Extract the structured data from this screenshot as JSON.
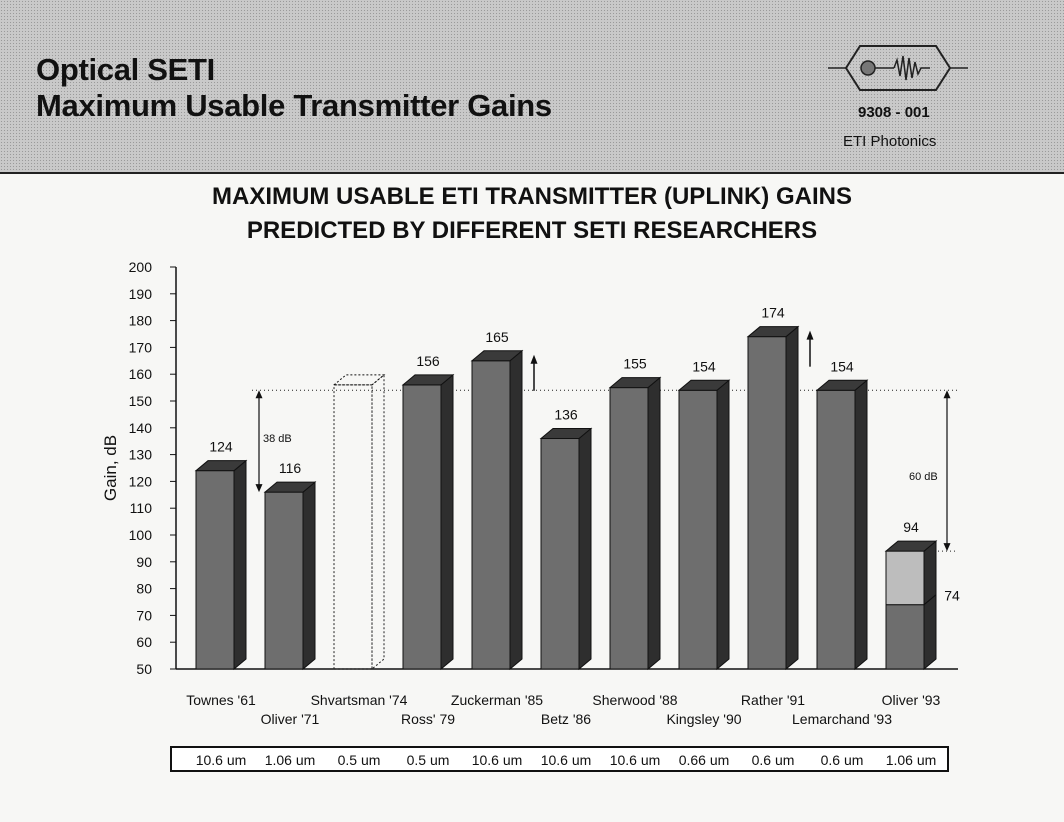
{
  "header": {
    "title_line1": "Optical SETI",
    "title_line2": "Maximum Usable Transmitter Gains",
    "doc_number": "9308 - 001",
    "org": "ETI Photonics",
    "logo_icon": "laser-signal-logo-icon"
  },
  "chart_data": {
    "type": "bar",
    "title_line1": "MAXIMUM USABLE ETI TRANSMITTER (UPLINK) GAINS",
    "title_line2": "PREDICTED BY DIFFERENT SETI RESEARCHERS",
    "ylabel": "Gain, dB",
    "ylim": [
      50,
      200
    ],
    "yticks": [
      50,
      60,
      70,
      80,
      90,
      100,
      110,
      120,
      130,
      140,
      150,
      160,
      170,
      180,
      190,
      200
    ],
    "categories": [
      "Townes '61",
      "Oliver '71",
      "Shvartsman '74",
      "Ross' 79",
      "Zuckerman '85",
      "Betz '86",
      "Sherwood '88",
      "Kingsley '90",
      "Rather '91",
      "Lemarchand '93",
      "Oliver '93"
    ],
    "values": [
      124,
      116,
      156,
      156,
      165,
      136,
      155,
      154,
      174,
      154,
      94
    ],
    "data_labels": [
      "124",
      "116",
      "",
      "156",
      "165",
      "136",
      "155",
      "154",
      "174",
      "154",
      "94"
    ],
    "outline_only": [
      false,
      false,
      true,
      false,
      false,
      false,
      false,
      false,
      false,
      false,
      false
    ],
    "upward_arrow": [
      false,
      false,
      false,
      false,
      true,
      false,
      false,
      false,
      true,
      false,
      false
    ],
    "stacked_lower": {
      "index": 10,
      "value": 74,
      "label": "74"
    },
    "wavelengths": [
      "10.6 um",
      "1.06 um",
      "0.5 um",
      "0.5 um",
      "10.6 um",
      "10.6 um",
      "10.6 um",
      "0.66 um",
      "0.6 um",
      "0.6 um",
      "1.06 um"
    ],
    "annotations": [
      {
        "text": "38 dB",
        "from": 116,
        "to": 154
      },
      {
        "text": "60 dB",
        "from": 94,
        "to": 154
      }
    ],
    "colors": {
      "bar_front": "#6e6e6e",
      "bar_side": "#2e2e2e",
      "bar_top": "#3a3a3a",
      "stack_upper": "#bdbdbd"
    }
  }
}
